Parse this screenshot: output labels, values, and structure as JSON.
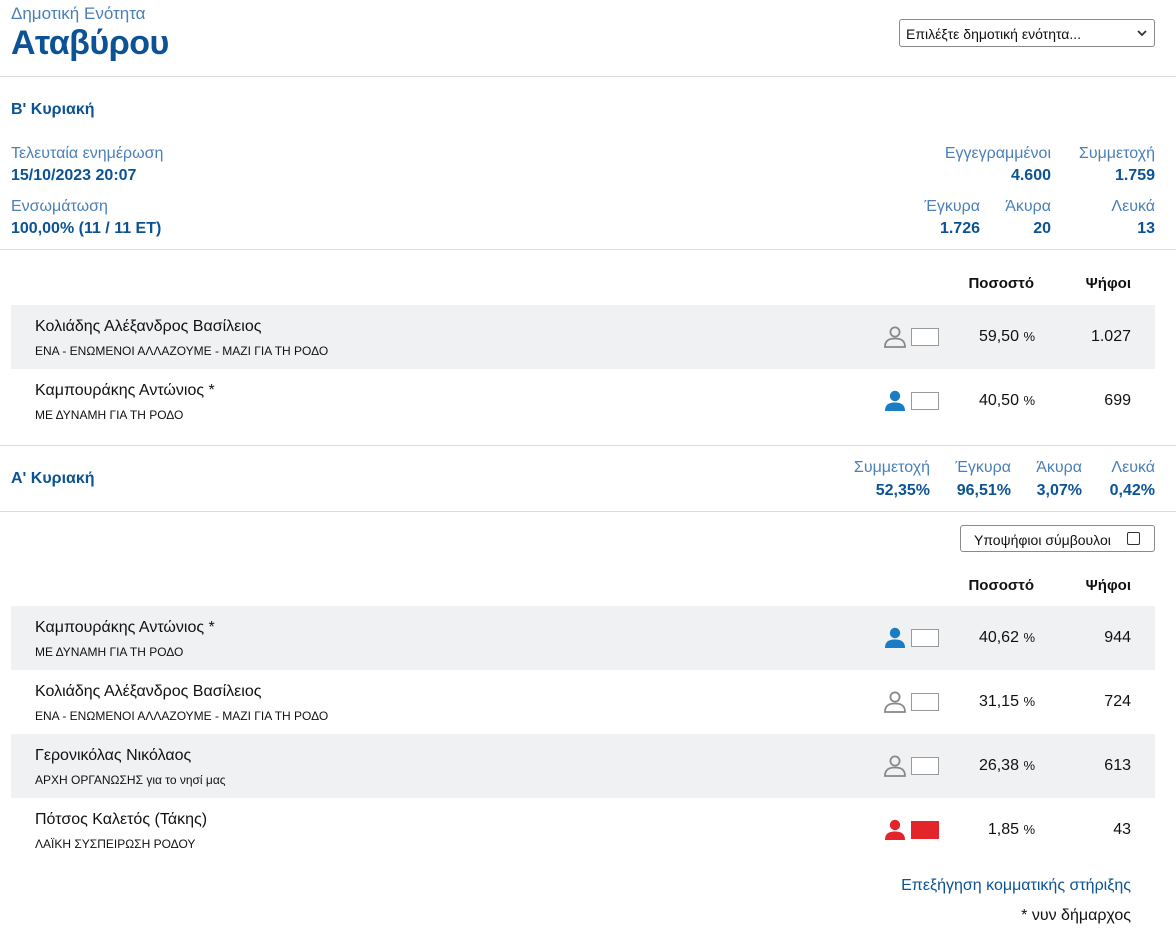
{
  "header": {
    "unit_label": "Δημοτική Ενότητα",
    "unit_title": "Αταβύρου",
    "select_placeholder": "Επιλέξτε δημοτική ενότητα..."
  },
  "round_b": {
    "title": "Β' Κυριακή",
    "last_update_label": "Τελευταία ενημέρωση",
    "last_update_value": "15/10/2023 20:07",
    "integration_label": "Ενσωμάτωση",
    "integration_value": "100,00% (11 / 11 ΕΤ)",
    "registered_label": "Εγγεγραμμένοι",
    "registered_value": "4.600",
    "turnout_label": "Συμμετοχή",
    "turnout_value": "1.759",
    "valid_label": "Έγκυρα",
    "valid_value": "1.726",
    "invalid_label": "Άκυρα",
    "invalid_value": "20",
    "blank_label": "Λευκά",
    "blank_value": "13",
    "col_percent": "Ποσοστό",
    "col_votes": "Ψήφοι",
    "candidates": [
      {
        "name": "Κολιάδης Αλέξανδρος Βασίλειος",
        "party": "ΕΝΑ - ΕΝΩΜΕΝΟΙ ΑΛΛΑΖΟΥΜΕ - ΜΑΖΙ ΓΙΑ ΤΗ ΡΟΔΟ",
        "percent": "59,50",
        "votes": "1.027",
        "icon_color": "#888888",
        "box_color": "#ffffff",
        "filled": false
      },
      {
        "name": "Καμπουράκης Αντώνιος *",
        "party": "ΜΕ ΔΥΝΑΜΗ ΓΙΑ ΤΗ ΡΟΔΟ",
        "percent": "40,50",
        "votes": "699",
        "icon_color": "#1a7cc4",
        "box_color": "#ffffff",
        "filled": true
      }
    ]
  },
  "round_a": {
    "title": "Α' Κυριακή",
    "turnout_label": "Συμμετοχή",
    "turnout_value": "52,35%",
    "valid_label": "Έγκυρα",
    "valid_value": "96,51%",
    "invalid_label": "Άκυρα",
    "invalid_value": "3,07%",
    "blank_label": "Λευκά",
    "blank_value": "0,42%",
    "councillors_label": "Υποψήφιοι σύμβουλοι",
    "col_percent": "Ποσοστό",
    "col_votes": "Ψήφοι",
    "candidates": [
      {
        "name": "Καμπουράκης Αντώνιος *",
        "party": "ΜΕ ΔΥΝΑΜΗ ΓΙΑ ΤΗ ΡΟΔΟ",
        "percent": "40,62",
        "votes": "944",
        "icon_color": "#1a7cc4",
        "box_color": "#ffffff",
        "filled": true
      },
      {
        "name": "Κολιάδης Αλέξανδρος Βασίλειος",
        "party": "ΕΝΑ - ΕΝΩΜΕΝΟΙ ΑΛΛΑΖΟΥΜΕ - ΜΑΖΙ ΓΙΑ ΤΗ ΡΟΔΟ",
        "percent": "31,15",
        "votes": "724",
        "icon_color": "#888888",
        "box_color": "#ffffff",
        "filled": false
      },
      {
        "name": "Γερονικόλας Νικόλαος",
        "party": "ΑΡΧΗ ΟΡΓΑΝΩΣΗΣ για το νησί μας",
        "percent": "26,38",
        "votes": "613",
        "icon_color": "#888888",
        "box_color": "#ffffff",
        "filled": false
      },
      {
        "name": "Πότσος Καλετός (Τάκης)",
        "party": "ΛΑΪΚΗ ΣΥΣΠΕΙΡΩΣΗ ΡΟΔΟΥ",
        "percent": "1,85",
        "votes": "43",
        "icon_color": "#e3242b",
        "box_color": "#e3242b",
        "filled": true
      }
    ]
  },
  "footer": {
    "party_support_link": "Επεξήγηση κομματικής στήριξης",
    "mayor_note": "* νυν δήμαρχος"
  },
  "percent_suffix": "%"
}
